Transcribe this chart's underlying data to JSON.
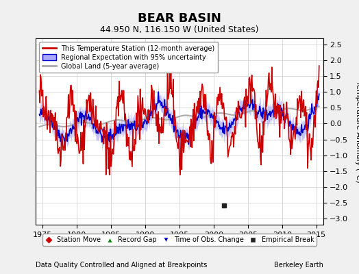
{
  "title": "BEAR BASIN",
  "subtitle": "44.950 N, 116.150 W (United States)",
  "ylabel": "Temperature Anomaly (°C)",
  "xlabel_left": "Data Quality Controlled and Aligned at Breakpoints",
  "xlabel_right": "Berkeley Earth",
  "xlim": [
    1974,
    2016
  ],
  "ylim": [
    -3.2,
    2.7
  ],
  "yticks": [
    -3,
    -2.5,
    -2,
    -1.5,
    -1,
    -0.5,
    0,
    0.5,
    1,
    1.5,
    2,
    2.5
  ],
  "xticks": [
    1975,
    1980,
    1985,
    1990,
    1995,
    2000,
    2005,
    2010,
    2015
  ],
  "bg_color": "#f0f0f0",
  "plot_bg_color": "#ffffff",
  "station_color": "#cc0000",
  "regional_color": "#0000cc",
  "regional_fill_color": "#aaaaff",
  "global_color": "#aaaaaa",
  "marker_station_move_color": "#cc0000",
  "marker_record_gap_color": "#008800",
  "marker_time_obs_color": "#0000cc",
  "marker_empirical_break_color": "#222222",
  "empirical_break_x": 2001.5,
  "empirical_break_y": -2.6
}
